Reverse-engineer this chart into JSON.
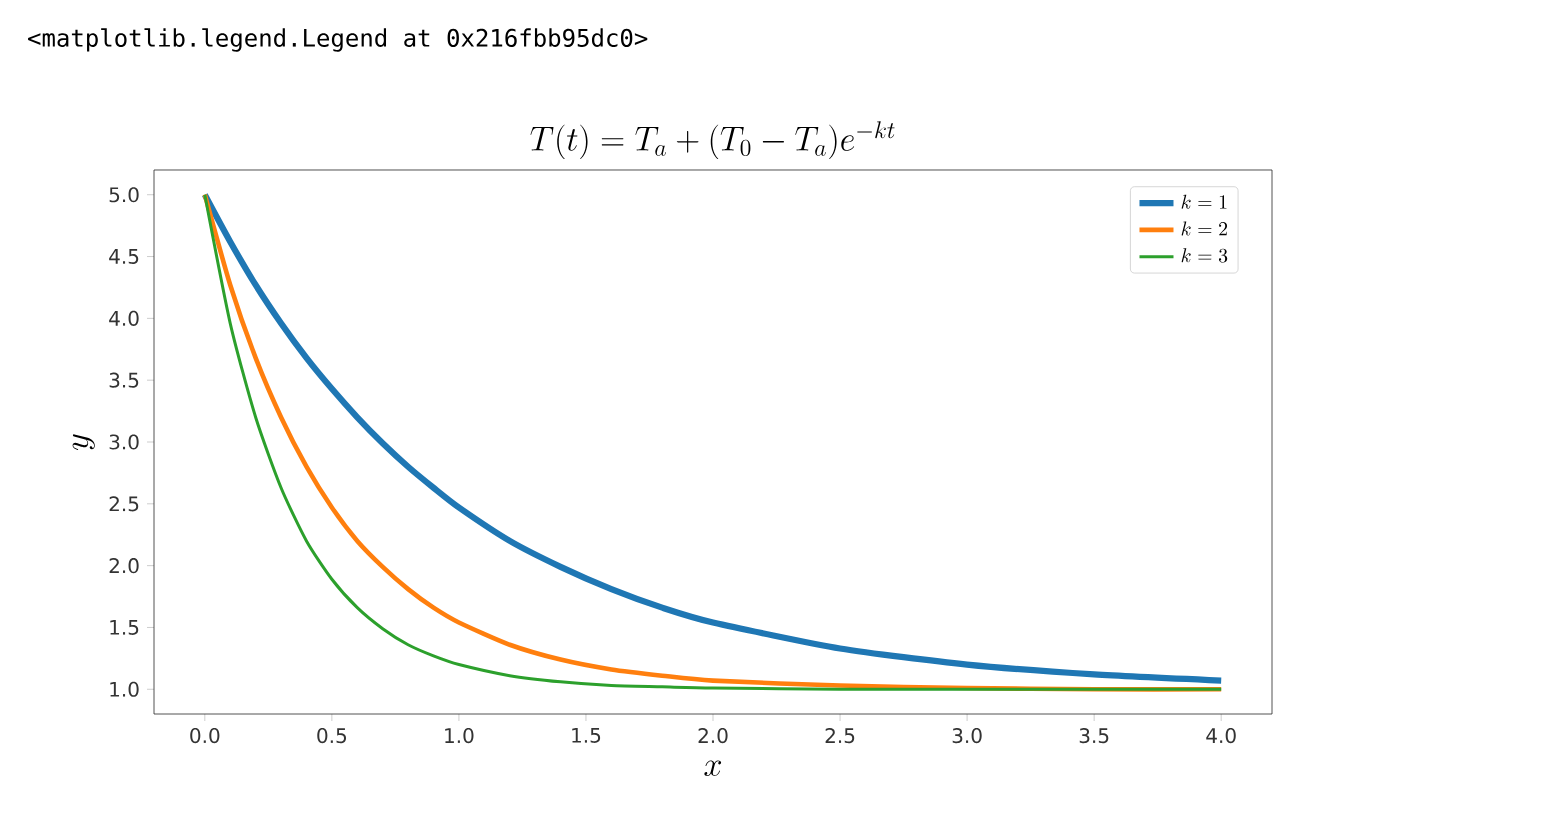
{
  "chart_data": {
    "type": "line",
    "title": "T(t) = T_a + (T_0 - T_a)e^{-kt}",
    "xlabel": "x",
    "ylabel": "y",
    "annotations": [
      "<matplotlib.legend.Legend at 0x216fbb95dc0>"
    ],
    "x": [
      0,
      0.1,
      0.2,
      0.3,
      0.4,
      0.5,
      0.6,
      0.7,
      0.8,
      0.9,
      1.0,
      1.2,
      1.4,
      1.6,
      1.8,
      2.0,
      2.5,
      3.0,
      3.5,
      4.0
    ],
    "series": [
      {
        "name": "k = 1",
        "color": "#1f77b4",
        "values": [
          5.0,
          4.62,
          4.27,
          3.96,
          3.68,
          3.43,
          3.2,
          2.99,
          2.8,
          2.63,
          2.47,
          2.2,
          1.99,
          1.81,
          1.66,
          1.54,
          1.33,
          1.2,
          1.12,
          1.07
        ]
      },
      {
        "name": "k = 2",
        "color": "#ff7f0e",
        "values": [
          5.0,
          4.27,
          3.68,
          3.2,
          2.8,
          2.47,
          2.2,
          1.99,
          1.81,
          1.66,
          1.54,
          1.36,
          1.24,
          1.16,
          1.11,
          1.07,
          1.03,
          1.01,
          1.0,
          1.0
        ]
      },
      {
        "name": "k = 3",
        "color": "#2ca02c",
        "values": [
          5.0,
          3.96,
          3.2,
          2.63,
          2.2,
          1.89,
          1.66,
          1.49,
          1.36,
          1.27,
          1.2,
          1.11,
          1.06,
          1.03,
          1.02,
          1.01,
          1.0,
          1.0,
          1.0,
          1.0
        ]
      }
    ],
    "xlim": [
      -0.2,
      4.2
    ],
    "ylim": [
      0.8,
      5.2
    ],
    "xticks": [
      {
        "value": 0,
        "label": "0.0"
      },
      {
        "value": 0.5,
        "label": "0.5"
      },
      {
        "value": 1,
        "label": "1.0"
      },
      {
        "value": 1.5,
        "label": "1.5"
      },
      {
        "value": 2,
        "label": "2.0"
      },
      {
        "value": 2.5,
        "label": "2.5"
      },
      {
        "value": 3,
        "label": "3.0"
      },
      {
        "value": 3.5,
        "label": "3.5"
      },
      {
        "value": 4,
        "label": "4.0"
      }
    ],
    "yticks": [
      {
        "value": 1,
        "label": "1.0"
      },
      {
        "value": 1.5,
        "label": "1.5"
      },
      {
        "value": 2,
        "label": "2.0"
      },
      {
        "value": 2.5,
        "label": "2.5"
      },
      {
        "value": 3,
        "label": "3.0"
      },
      {
        "value": 3.5,
        "label": "3.5"
      },
      {
        "value": 4,
        "label": "4.0"
      },
      {
        "value": 4.5,
        "label": "4.5"
      },
      {
        "value": 5,
        "label": "5.0"
      }
    ],
    "legend": "top right"
  }
}
